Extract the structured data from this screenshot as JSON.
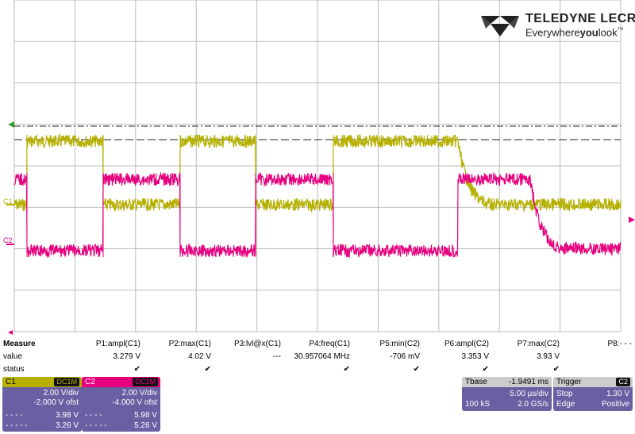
{
  "logo": {
    "brand": "TELEDYNE LECROY",
    "tagline_plain": "Everywhere",
    "tagline_bold": "you",
    "tagline_end": "look",
    "tm": "™"
  },
  "channels": [
    {
      "id": "C1",
      "color": "#b5b000"
    },
    {
      "id": "C2",
      "color": "#e6007e"
    }
  ],
  "measure": {
    "row_labels": [
      "Measure",
      "value",
      "status"
    ],
    "params": [
      {
        "name": "P1:ampl(C1)",
        "value": "3.279 V",
        "status": "✔"
      },
      {
        "name": "P2:max(C1)",
        "value": "4.02 V",
        "status": "✔"
      },
      {
        "name": "P3:lvl@x(C1)",
        "value": "---",
        "status": ""
      },
      {
        "name": "P4:freq(C1)",
        "value": "30.957064 MHz",
        "status": "✔"
      },
      {
        "name": "P5:min(C2)",
        "value": "-706 mV",
        "status": "✔"
      },
      {
        "name": "P6:ampl(C2)",
        "value": "3.353 V",
        "status": "✔"
      },
      {
        "name": "P7:max(C2)",
        "value": "3.93 V",
        "status": "✔"
      },
      {
        "name": "P8:- - -",
        "value": "",
        "status": ""
      }
    ]
  },
  "c1_box": {
    "title": "C1",
    "coupling": "DC1M",
    "vdiv": "2.00 V/div",
    "ofst": "-2.000 V ofst",
    "cur1_val": "3.98 V",
    "cur2_val": "3.26 V",
    "cur1_sym": "- - - -",
    "cur2_sym": "- - - - -",
    "color": "#b5b000"
  },
  "c2_box": {
    "title": "C2",
    "coupling": "DC1M",
    "vdiv": "2.00 V/div",
    "ofst": "-4.000 V ofst",
    "cur1_val": "5.98 V",
    "cur2_val": "5.26 V",
    "cur1_sym": "- - - -",
    "cur2_sym": "- - - - -",
    "color": "#e6007e"
  },
  "timebase": {
    "title": "Tbase",
    "delay": "-1.9491 ms",
    "tdiv": "5.00 µs/div",
    "samples": "100 kS",
    "rate": "2.0 GS/s"
  },
  "trigger": {
    "title": "Trigger",
    "source": "C2",
    "mode": "Stop",
    "level": "1.30 V",
    "type": "Edge",
    "slope": "Positive"
  }
}
